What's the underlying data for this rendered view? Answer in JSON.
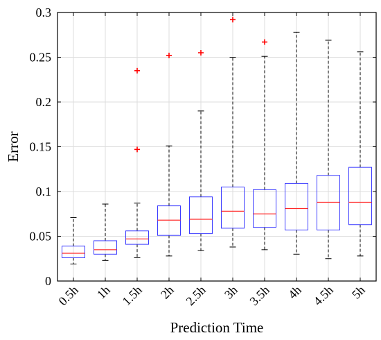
{
  "chart_data": {
    "type": "boxplot",
    "xlabel": "Prediction Time",
    "ylabel": "Error",
    "ylim": [
      0,
      0.3
    ],
    "yticks": [
      0,
      0.05,
      0.1,
      0.15,
      0.2,
      0.25,
      0.3
    ],
    "ytick_labels": [
      "0",
      "0.05",
      "0.1",
      "0.15",
      "0.2",
      "0.25",
      "0.3"
    ],
    "grid": true,
    "colors": {
      "box": "#3b3bff",
      "median": "#ff2a2a",
      "outlier": "#ff0000",
      "whisker": "#000000",
      "grid": "#dcdcdc"
    },
    "categories": [
      "0.5h",
      "1h",
      "1.5h",
      "2h",
      "2.5h",
      "3h",
      "3.5h",
      "4h",
      "4.5h",
      "5h"
    ],
    "boxes": [
      {
        "whisker_low": 0.019,
        "q1": 0.026,
        "median": 0.031,
        "q3": 0.039,
        "whisker_high": 0.071,
        "outliers": []
      },
      {
        "whisker_low": 0.023,
        "q1": 0.03,
        "median": 0.035,
        "q3": 0.045,
        "whisker_high": 0.086,
        "outliers": []
      },
      {
        "whisker_low": 0.026,
        "q1": 0.041,
        "median": 0.047,
        "q3": 0.056,
        "whisker_high": 0.087,
        "outliers": [
          0.147,
          0.235
        ]
      },
      {
        "whisker_low": 0.028,
        "q1": 0.051,
        "median": 0.068,
        "q3": 0.084,
        "whisker_high": 0.151,
        "outliers": [
          0.252
        ]
      },
      {
        "whisker_low": 0.034,
        "q1": 0.053,
        "median": 0.069,
        "q3": 0.094,
        "whisker_high": 0.19,
        "outliers": [
          0.255
        ]
      },
      {
        "whisker_low": 0.038,
        "q1": 0.059,
        "median": 0.078,
        "q3": 0.105,
        "whisker_high": 0.25,
        "outliers": [
          0.292
        ]
      },
      {
        "whisker_low": 0.035,
        "q1": 0.06,
        "median": 0.075,
        "q3": 0.102,
        "whisker_high": 0.251,
        "outliers": [
          0.267
        ]
      },
      {
        "whisker_low": 0.03,
        "q1": 0.057,
        "median": 0.081,
        "q3": 0.109,
        "whisker_high": 0.278,
        "outliers": []
      },
      {
        "whisker_low": 0.025,
        "q1": 0.057,
        "median": 0.088,
        "q3": 0.118,
        "whisker_high": 0.269,
        "outliers": []
      },
      {
        "whisker_low": 0.028,
        "q1": 0.063,
        "median": 0.088,
        "q3": 0.127,
        "whisker_high": 0.256,
        "outliers": []
      }
    ]
  }
}
